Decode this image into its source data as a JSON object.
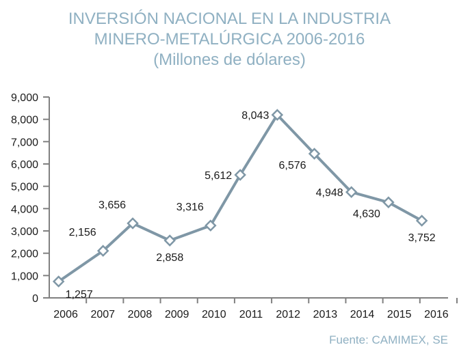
{
  "chart_data": {
    "type": "line",
    "title": "INVERSIÓN NACIONAL EN LA INDUSTRIA",
    "title_line2": "MINERO-METALÚRGICA 2006-2016",
    "subtitle": "(Millones de dólares)",
    "xlabel": "",
    "ylabel": "",
    "categories": [
      "2006",
      "2007",
      "2008",
      "2009",
      "2010",
      "2011",
      "2012",
      "2013",
      "2014",
      "2015",
      "2016"
    ],
    "series": [
      {
        "name": "Inversión",
        "values": [
          1257,
          2156,
          3656,
          2858,
          3316,
          5612,
          8043,
          6576,
          4948,
          4630,
          3752
        ],
        "value_labels": [
          "1,257",
          "2,156",
          "3,656",
          "2,858",
          "3,316",
          "5,612",
          "8,043",
          "6,576",
          "4,948",
          "4,630",
          "3,752"
        ],
        "label_side": [
          "below-right",
          "above-left",
          "above-left",
          "below",
          "above-left",
          "left",
          "left",
          "below-left",
          "left",
          "below-left",
          "below"
        ],
        "plotted_points": [
          {
            "x": 0.4,
            "y": 735
          },
          {
            "x": 1.2,
            "y": 1650,
            "marker": false
          },
          {
            "x": 1.6,
            "y": 2110
          },
          {
            "x": 2.4,
            "y": 3340
          },
          {
            "x": 3.4,
            "y": 2570
          },
          {
            "x": 4.5,
            "y": 3240
          },
          {
            "x": 5.3,
            "y": 5510
          },
          {
            "x": 6.3,
            "y": 8200
          },
          {
            "x": 7.3,
            "y": 6460
          },
          {
            "x": 8.3,
            "y": 4740
          },
          {
            "x": 9.3,
            "y": 4280
          },
          {
            "x": 10.2,
            "y": 3460
          }
        ],
        "color": "#7f97a6"
      }
    ],
    "yticks": [
      0,
      1000,
      2000,
      3000,
      4000,
      5000,
      6000,
      7000,
      8000,
      9000
    ],
    "ytick_labels": [
      "0",
      "1,000",
      "2,000",
      "3,000",
      "4,000",
      "5,000",
      "6,000",
      "7,000",
      "8,000",
      "9,000"
    ],
    "ylim": [
      0,
      9000
    ],
    "grid": false,
    "legend": "none",
    "source": "Fuente: CAMIMEX, SE"
  },
  "colors": {
    "title": "#8fb0c2",
    "line": "#7f97a6",
    "axis": "#808080",
    "text": "#1a1a1a"
  }
}
